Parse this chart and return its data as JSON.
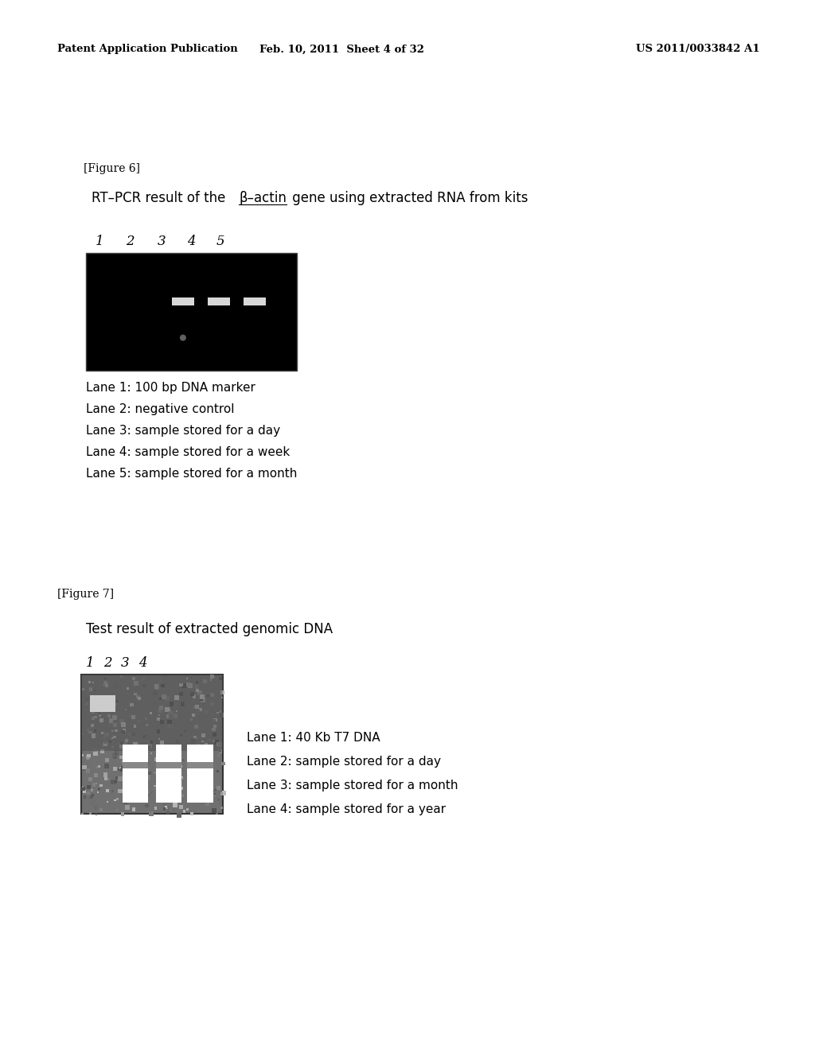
{
  "background_color": "#ffffff",
  "header_left": "Patent Application Publication",
  "header_center": "Feb. 10, 2011  Sheet 4 of 32",
  "header_right": "US 2011/0033842 A1",
  "fig6_label": "[Figure 6]",
  "fig6_title_part1": "RT–PCR result of the ",
  "fig6_title_beta": "β–actin",
  "fig6_title_part2": " gene using extracted RNA from kits",
  "fig6_legend": [
    "Lane 1: 100 bp DNA marker",
    "Lane 2: negative control",
    "Lane 3: sample stored for a day",
    "Lane 4: sample stored for a week",
    "Lane 5: sample stored for a month"
  ],
  "fig7_label": "[Figure 7]",
  "fig7_title": "Test result of extracted genomic DNA",
  "fig7_legend": [
    "Lane 1: 40 Kb T7 DNA",
    "Lane 2: sample stored for a day",
    "Lane 3: sample stored for a month",
    "Lane 4: sample stored for a year"
  ]
}
